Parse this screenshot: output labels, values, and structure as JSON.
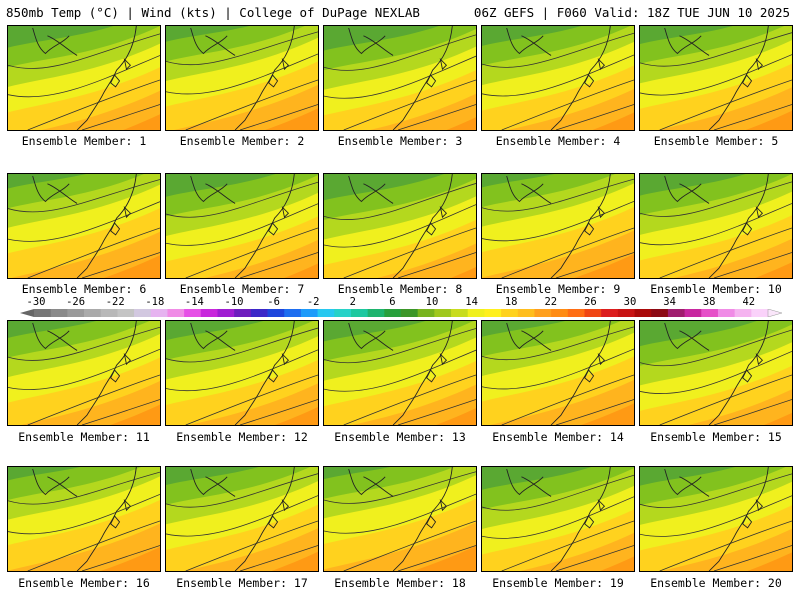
{
  "header": {
    "left": "850mb Temp (°C) | Wind (kts) | College of DuPage NEXLAB",
    "right": "06Z GEFS | F060 Valid: 18Z TUE JUN 10 2025"
  },
  "members": [
    {
      "label": "Ensemble Member: 1"
    },
    {
      "label": "Ensemble Member: 2"
    },
    {
      "label": "Ensemble Member: 3"
    },
    {
      "label": "Ensemble Member: 4"
    },
    {
      "label": "Ensemble Member: 5"
    },
    {
      "label": "Ensemble Member: 6"
    },
    {
      "label": "Ensemble Member: 7"
    },
    {
      "label": "Ensemble Member: 8"
    },
    {
      "label": "Ensemble Member: 9"
    },
    {
      "label": "Ensemble Member: 10"
    },
    {
      "label": "Ensemble Member: 11"
    },
    {
      "label": "Ensemble Member: 12"
    },
    {
      "label": "Ensemble Member: 13"
    },
    {
      "label": "Ensemble Member: 14"
    },
    {
      "label": "Ensemble Member: 15"
    },
    {
      "label": "Ensemble Member: 16"
    },
    {
      "label": "Ensemble Member: 17"
    },
    {
      "label": "Ensemble Member: 18"
    },
    {
      "label": "Ensemble Member: 19"
    },
    {
      "label": "Ensemble Member: 20"
    }
  ],
  "colorbar": {
    "labels": [
      "-30",
      "-26",
      "-22",
      "-18",
      "-14",
      "-10",
      "-6",
      "-2",
      "2",
      "6",
      "10",
      "14",
      "18",
      "22",
      "26",
      "30",
      "34",
      "38",
      "42"
    ],
    "colors": [
      "#777777",
      "#8a8a8a",
      "#9a9a9a",
      "#aaaaaa",
      "#b8b8b8",
      "#c4c4c4",
      "#d2c8e0",
      "#e6b4f0",
      "#f08ce6",
      "#e650e6",
      "#c828dc",
      "#a01ed2",
      "#6e1ebe",
      "#3c28c8",
      "#1e46dc",
      "#1e6ef0",
      "#1e9bfa",
      "#28c8f0",
      "#28d2c8",
      "#1ec8a0",
      "#1eb46e",
      "#28a03c",
      "#3c9628",
      "#78b41e",
      "#a0c81e",
      "#c8dc1e",
      "#f0f01e",
      "#fff01e",
      "#ffd21e",
      "#ffbe1e",
      "#ffa01e",
      "#ff8c14",
      "#ff6e14",
      "#f04614",
      "#dc1e1e",
      "#c81414",
      "#aa0a0a",
      "#8c0a14",
      "#a01e6e",
      "#c828a0",
      "#e650c8",
      "#f08ce6",
      "#f5b4f0",
      "#fad2fa"
    ]
  }
}
